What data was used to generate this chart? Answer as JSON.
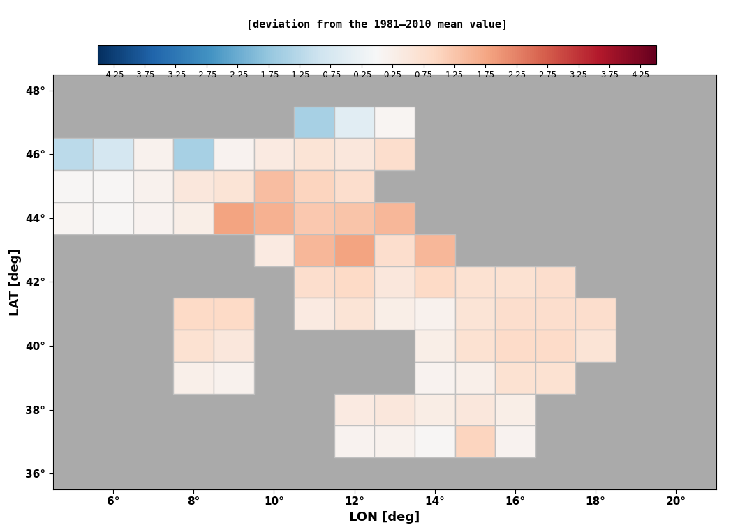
{
  "title": "[deviation from the 1981–2010 mean value]",
  "xlabel": "LON [deg]",
  "ylabel": "LAT [deg]",
  "lon_min": 4.5,
  "lon_max": 21.0,
  "lat_min": 35.5,
  "lat_max": 48.5,
  "lon_ticks": [
    6,
    8,
    10,
    12,
    14,
    16,
    18,
    20
  ],
  "lat_ticks": [
    36,
    38,
    40,
    42,
    44,
    46,
    48
  ],
  "colorbar_ticks": [
    -4.25,
    -3.75,
    -3.25,
    -2.75,
    -2.25,
    -1.75,
    -1.25,
    -0.75,
    -0.25,
    0.25,
    0.75,
    1.25,
    1.75,
    2.25,
    2.75,
    3.25,
    3.75,
    4.25
  ],
  "vmin": -4.5,
  "vmax": 4.5,
  "cell_size": 1.0,
  "background_color": "#aaaaaa",
  "land_color": "#c8c8c8",
  "grid_color": "#b0b0b0",
  "cells": [
    {
      "lon": 11.0,
      "lat": 47.0,
      "value": -1.5
    },
    {
      "lon": 12.0,
      "lat": 47.0,
      "value": -0.5
    },
    {
      "lon": 13.0,
      "lat": 47.0,
      "value": 0.1
    },
    {
      "lon": 5.0,
      "lat": 46.0,
      "value": -1.2
    },
    {
      "lon": 6.0,
      "lat": 46.0,
      "value": -0.8
    },
    {
      "lon": 7.0,
      "lat": 46.0,
      "value": 0.2
    },
    {
      "lon": 8.0,
      "lat": 46.0,
      "value": -1.5
    },
    {
      "lon": 9.0,
      "lat": 46.0,
      "value": 0.15
    },
    {
      "lon": 10.0,
      "lat": 46.0,
      "value": 0.4
    },
    {
      "lon": 11.0,
      "lat": 46.0,
      "value": 0.6
    },
    {
      "lon": 12.0,
      "lat": 46.0,
      "value": 0.5
    },
    {
      "lon": 13.0,
      "lat": 46.0,
      "value": 0.8
    },
    {
      "lon": 5.0,
      "lat": 45.0,
      "value": 0.05
    },
    {
      "lon": 6.0,
      "lat": 45.0,
      "value": 0.05
    },
    {
      "lon": 7.0,
      "lat": 45.0,
      "value": 0.2
    },
    {
      "lon": 8.0,
      "lat": 45.0,
      "value": 0.5
    },
    {
      "lon": 9.0,
      "lat": 45.0,
      "value": 0.6
    },
    {
      "lon": 10.0,
      "lat": 45.0,
      "value": 1.4
    },
    {
      "lon": 11.0,
      "lat": 45.0,
      "value": 1.0
    },
    {
      "lon": 12.0,
      "lat": 45.0,
      "value": 0.8
    },
    {
      "lon": 5.0,
      "lat": 44.0,
      "value": 0.1
    },
    {
      "lon": 6.0,
      "lat": 44.0,
      "value": 0.05
    },
    {
      "lon": 7.0,
      "lat": 44.0,
      "value": 0.15
    },
    {
      "lon": 8.0,
      "lat": 44.0,
      "value": 0.3
    },
    {
      "lon": 9.0,
      "lat": 44.0,
      "value": 1.8
    },
    {
      "lon": 10.0,
      "lat": 44.0,
      "value": 1.6
    },
    {
      "lon": 11.0,
      "lat": 44.0,
      "value": 1.2
    },
    {
      "lon": 12.0,
      "lat": 44.0,
      "value": 1.3
    },
    {
      "lon": 13.0,
      "lat": 44.0,
      "value": 1.5
    },
    {
      "lon": 10.0,
      "lat": 43.0,
      "value": 0.4
    },
    {
      "lon": 11.0,
      "lat": 43.0,
      "value": 1.5
    },
    {
      "lon": 12.0,
      "lat": 43.0,
      "value": 1.8
    },
    {
      "lon": 13.0,
      "lat": 43.0,
      "value": 0.8
    },
    {
      "lon": 14.0,
      "lat": 43.0,
      "value": 1.5
    },
    {
      "lon": 11.0,
      "lat": 42.0,
      "value": 0.8
    },
    {
      "lon": 12.0,
      "lat": 42.0,
      "value": 0.9
    },
    {
      "lon": 13.0,
      "lat": 42.0,
      "value": 0.5
    },
    {
      "lon": 14.0,
      "lat": 42.0,
      "value": 0.9
    },
    {
      "lon": 15.0,
      "lat": 42.0,
      "value": 0.7
    },
    {
      "lon": 16.0,
      "lat": 42.0,
      "value": 0.7
    },
    {
      "lon": 17.0,
      "lat": 42.0,
      "value": 0.8
    },
    {
      "lon": 8.0,
      "lat": 41.0,
      "value": 0.9
    },
    {
      "lon": 9.0,
      "lat": 41.0,
      "value": 0.9
    },
    {
      "lon": 11.0,
      "lat": 41.0,
      "value": 0.4
    },
    {
      "lon": 12.0,
      "lat": 41.0,
      "value": 0.6
    },
    {
      "lon": 13.0,
      "lat": 41.0,
      "value": 0.3
    },
    {
      "lon": 14.0,
      "lat": 41.0,
      "value": 0.2
    },
    {
      "lon": 15.0,
      "lat": 41.0,
      "value": 0.6
    },
    {
      "lon": 16.0,
      "lat": 41.0,
      "value": 0.8
    },
    {
      "lon": 17.0,
      "lat": 41.0,
      "value": 0.8
    },
    {
      "lon": 18.0,
      "lat": 41.0,
      "value": 0.8
    },
    {
      "lon": 8.0,
      "lat": 40.0,
      "value": 0.7
    },
    {
      "lon": 9.0,
      "lat": 40.0,
      "value": 0.5
    },
    {
      "lon": 14.0,
      "lat": 40.0,
      "value": 0.3
    },
    {
      "lon": 15.0,
      "lat": 40.0,
      "value": 0.7
    },
    {
      "lon": 16.0,
      "lat": 40.0,
      "value": 0.85
    },
    {
      "lon": 17.0,
      "lat": 40.0,
      "value": 0.85
    },
    {
      "lon": 18.0,
      "lat": 40.0,
      "value": 0.6
    },
    {
      "lon": 8.0,
      "lat": 39.0,
      "value": 0.25
    },
    {
      "lon": 9.0,
      "lat": 39.0,
      "value": 0.2
    },
    {
      "lon": 14.0,
      "lat": 39.0,
      "value": 0.15
    },
    {
      "lon": 15.0,
      "lat": 39.0,
      "value": 0.25
    },
    {
      "lon": 16.0,
      "lat": 39.0,
      "value": 0.7
    },
    {
      "lon": 17.0,
      "lat": 39.0,
      "value": 0.7
    },
    {
      "lon": 12.0,
      "lat": 38.0,
      "value": 0.4
    },
    {
      "lon": 13.0,
      "lat": 38.0,
      "value": 0.5
    },
    {
      "lon": 14.0,
      "lat": 38.0,
      "value": 0.35
    },
    {
      "lon": 15.0,
      "lat": 38.0,
      "value": 0.5
    },
    {
      "lon": 16.0,
      "lat": 38.0,
      "value": 0.3
    },
    {
      "lon": 12.0,
      "lat": 37.0,
      "value": 0.15
    },
    {
      "lon": 13.0,
      "lat": 37.0,
      "value": 0.2
    },
    {
      "lon": 14.0,
      "lat": 37.0,
      "value": 0.05
    },
    {
      "lon": 15.0,
      "lat": 37.0,
      "value": 1.0
    },
    {
      "lon": 16.0,
      "lat": 37.0,
      "value": 0.15
    }
  ]
}
